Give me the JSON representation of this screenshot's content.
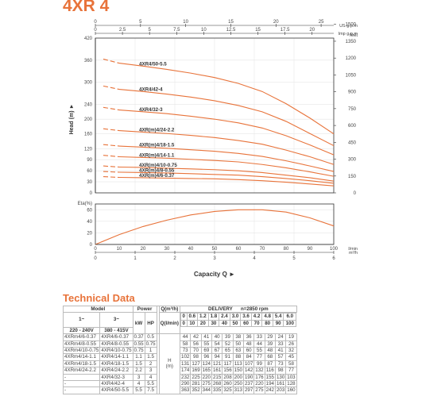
{
  "header": {
    "title": "4XR 4"
  },
  "chart_data": [
    {
      "type": "line",
      "ylabel": "Head (m)",
      "y_ticks": [
        "0",
        "30",
        "60",
        "90",
        "120",
        "160",
        "200",
        "240",
        "300",
        "360",
        "420"
      ],
      "y_ticks_feet": [
        "0",
        "150",
        "300",
        "450",
        "600",
        "750",
        "900",
        "1050",
        "1200",
        "1350",
        "1500"
      ],
      "right_axis_label": "feet",
      "top_axis_1": {
        "unit": "US g.p.m",
        "ticks": [
          "0",
          "5",
          "10",
          "15",
          "20",
          "25"
        ]
      },
      "top_axis_2": {
        "unit": "Imp g.p.m",
        "ticks": [
          "0",
          "2.5",
          "5",
          "7.5",
          "10",
          "12.5",
          "15",
          "17.5",
          "20"
        ]
      },
      "top_axis_3": {
        "unit": "",
        "ticks": [
          "0",
          "2.5",
          "5",
          "7.5",
          "10",
          "12.5",
          "15",
          "17.5",
          "20",
          "22.5",
          "25"
        ]
      },
      "x": [
        0,
        0.6,
        1.2,
        1.8,
        2.4,
        3.0,
        3.6,
        4.2,
        4.8,
        5.4,
        6.0
      ],
      "series": [
        {
          "name": "4XR4/50-5.5",
          "values": [
            363,
            352,
            344,
            335,
            325,
            313,
            297,
            275,
            242,
            203,
            160
          ]
        },
        {
          "name": "4XR4/42-4",
          "values": [
            290,
            281,
            275,
            268,
            260,
            250,
            237,
            220,
            194,
            161,
            128
          ]
        },
        {
          "name": "4XR4/32-3",
          "values": [
            232,
            225,
            220,
            215,
            208,
            200,
            190,
            176,
            155,
            130,
            103
          ]
        },
        {
          "name": "4XR(m)4/24-2.2",
          "values": [
            174,
            169,
            165,
            161,
            156,
            150,
            142,
            132,
            116,
            98,
            77
          ]
        },
        {
          "name": "4XR(m)4/18-1.5",
          "values": [
            131,
            127,
            124,
            121,
            117,
            113,
            107,
            99,
            87,
            73,
            58
          ]
        },
        {
          "name": "4XR(m)4/14-1.1",
          "values": [
            102,
            98,
            96,
            94,
            91,
            88,
            84,
            77,
            68,
            57,
            45
          ]
        },
        {
          "name": "4XR(m)4/10-0.75",
          "values": [
            73,
            70,
            69,
            67,
            65,
            63,
            60,
            55,
            48,
            41,
            32
          ]
        },
        {
          "name": "4XR(m)4/8-0.55",
          "values": [
            58,
            56,
            55,
            54,
            52,
            50,
            48,
            44,
            39,
            33,
            26
          ]
        },
        {
          "name": "4XR(m)4/6-0.37",
          "values": [
            44,
            42,
            41,
            40,
            39,
            38,
            36,
            33,
            29,
            24,
            19
          ]
        }
      ]
    },
    {
      "type": "line",
      "ylabel": "Eta(%)",
      "y_ticks": [
        "0",
        "20",
        "40",
        "60"
      ],
      "x_ticks_lmin": [
        "0",
        "10",
        "20",
        "30",
        "40",
        "50",
        "60",
        "70",
        "80",
        "90",
        "100"
      ],
      "x_ticks_m3h": [
        "0",
        "1",
        "2",
        "3",
        "4",
        "5",
        "6"
      ],
      "unit_lmin": "l/min",
      "unit_m3h": "m³/h",
      "xlabel": "Capacity Q",
      "efficiency_x": [
        0,
        0.6,
        1.2,
        1.8,
        2.4,
        3.0,
        3.6,
        4.2,
        4.8,
        5.4,
        6.0
      ],
      "efficiency": [
        0,
        17,
        31,
        42,
        51,
        57,
        60,
        60,
        56,
        46,
        32
      ]
    }
  ],
  "table": {
    "title": "Technical Data",
    "group_model": "Model",
    "group_power": "Power",
    "col_1ph": "1~",
    "col_1ph_v": "220 - 240V",
    "col_3ph": "3~",
    "col_3ph_v": "380 - 415V",
    "col_kw": "kW",
    "col_hp": "HP",
    "q_m3h_label": "Q(m³/h)",
    "q_lmin_label": "Q(l/min)",
    "delivery": "DELIVERY",
    "rpm": "n=2850 rpm",
    "h_label": "H",
    "h_unit": "(m)",
    "q_m3h": [
      "0",
      "0.6",
      "1.2",
      "1.8",
      "2.4",
      "3.0",
      "3.6",
      "4.2",
      "4.8",
      "5.4",
      "6.0"
    ],
    "q_lmin": [
      "0",
      "10",
      "20",
      "30",
      "40",
      "50",
      "60",
      "70",
      "80",
      "90",
      "100"
    ],
    "rows": [
      {
        "m1": "4XRm4/6-0.37",
        "m3": "4XR4/6-0.37",
        "kw": "0.37",
        "hp": "0.5",
        "h": [
          "44",
          "42",
          "41",
          "40",
          "39",
          "38",
          "36",
          "33",
          "29",
          "24",
          "19"
        ]
      },
      {
        "m1": "4XRm4/8-0.55",
        "m3": "4XR4/8-0.55",
        "kw": "0.55",
        "hp": "0.75",
        "h": [
          "58",
          "56",
          "55",
          "54",
          "52",
          "50",
          "48",
          "44",
          "39",
          "33",
          "26"
        ]
      },
      {
        "m1": "4XRm4/10-0.75",
        "m3": "4XR4/10-0.75",
        "kw": "0.75",
        "hp": "1",
        "h": [
          "73",
          "70",
          "69",
          "67",
          "65",
          "63",
          "60",
          "55",
          "48",
          "41",
          "32"
        ]
      },
      {
        "m1": "4XRm4/14-1.1",
        "m3": "4XR4/14-1.1",
        "kw": "1.1",
        "hp": "1.5",
        "h": [
          "102",
          "98",
          "96",
          "94",
          "91",
          "88",
          "84",
          "77",
          "68",
          "57",
          "45"
        ]
      },
      {
        "m1": "4XRm4/18-1.5",
        "m3": "4XR4/18-1.5",
        "kw": "1.5",
        "hp": "2",
        "h": [
          "131",
          "127",
          "124",
          "121",
          "117",
          "113",
          "107",
          "99",
          "87",
          "73",
          "58"
        ]
      },
      {
        "m1": "4XRm4/24-2.2",
        "m3": "4XR4/24-2.2",
        "kw": "2.2",
        "hp": "3",
        "h": [
          "174",
          "169",
          "165",
          "161",
          "156",
          "150",
          "142",
          "132",
          "116",
          "98",
          "77"
        ]
      },
      {
        "m1": "-",
        "m3": "4XR4/32-3",
        "kw": "3",
        "hp": "4",
        "h": [
          "232",
          "225",
          "220",
          "215",
          "208",
          "200",
          "190",
          "176",
          "155",
          "130",
          "103"
        ]
      },
      {
        "m1": "-",
        "m3": "4XR4/42-4",
        "kw": "4",
        "hp": "5.5",
        "h": [
          "290",
          "281",
          "275",
          "268",
          "260",
          "250",
          "237",
          "220",
          "194",
          "161",
          "128"
        ]
      },
      {
        "m1": "-",
        "m3": "4XR4/50-5.5",
        "kw": "5.5",
        "hp": "7.5",
        "h": [
          "363",
          "352",
          "344",
          "335",
          "325",
          "313",
          "297",
          "275",
          "242",
          "203",
          "160"
        ]
      }
    ]
  },
  "colors": {
    "accent": "#e8733a",
    "curve": "#e8733a",
    "grid": "#e6e6e6",
    "axis": "#333333"
  }
}
